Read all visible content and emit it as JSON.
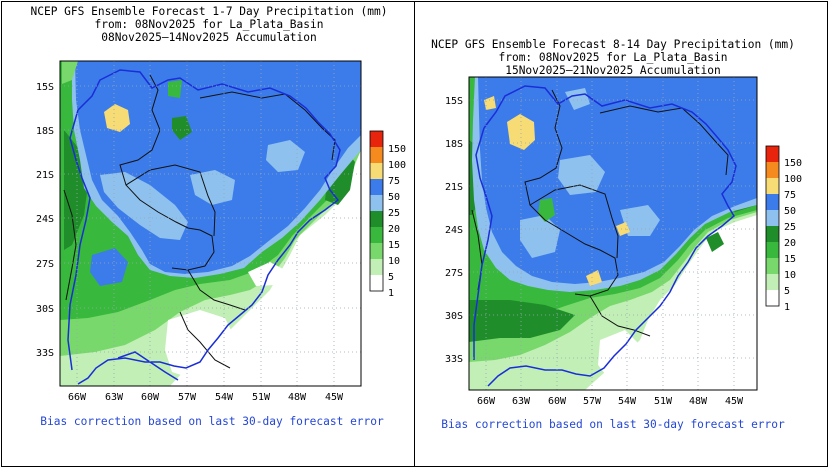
{
  "panels": [
    {
      "title_line1": "NCEP GFS Ensemble Forecast 1-7 Day Precipitation (mm)",
      "title_line2": "from: 08Nov2025   for La_Plata_Basin",
      "title_line3": "08Nov2025—14Nov2025 Accumulation",
      "footer": "Bias correction based on last 30-day forecast error",
      "lat_labels": [
        "15S",
        "18S",
        "21S",
        "24S",
        "27S",
        "30S",
        "33S"
      ],
      "lon_labels": [
        "66W",
        "63W",
        "60W",
        "57W",
        "54W",
        "51W",
        "48W",
        "45W"
      ],
      "colorbar_labels": [
        "150",
        "100",
        "75",
        "50",
        "25",
        "20",
        "15",
        "10",
        "5",
        "1"
      ]
    },
    {
      "title_line1": "NCEP GFS Ensemble Forecast 8-14 Day Precipitation (mm)",
      "title_line2": "from: 08Nov2025   for La_Plata_Basin",
      "title_line3": "15Nov2025—21Nov2025 Accumulation",
      "footer": "Bias correction based on last 30-day forecast error",
      "lat_labels": [
        "15S",
        "18S",
        "21S",
        "24S",
        "27S",
        "30S",
        "33S"
      ],
      "lon_labels": [
        "66W",
        "63W",
        "60W",
        "57W",
        "54W",
        "51W",
        "48W",
        "45W"
      ],
      "colorbar_labels": [
        "150",
        "100",
        "75",
        "50",
        "25",
        "20",
        "15",
        "10",
        "5",
        "1"
      ]
    }
  ],
  "colors": {
    "c150": "#e8240c",
    "c100": "#f58a1e",
    "c75": "#f7db74",
    "c50": "#3c7cea",
    "c25": "#8fc1ee",
    "c20": "#1f8e2a",
    "c15": "#38b83c",
    "c10": "#78d86c",
    "c5": "#c1efb6",
    "c1": "#ffffff",
    "basin_outline": "#1a2ed8",
    "footer_text": "#2547d4"
  }
}
